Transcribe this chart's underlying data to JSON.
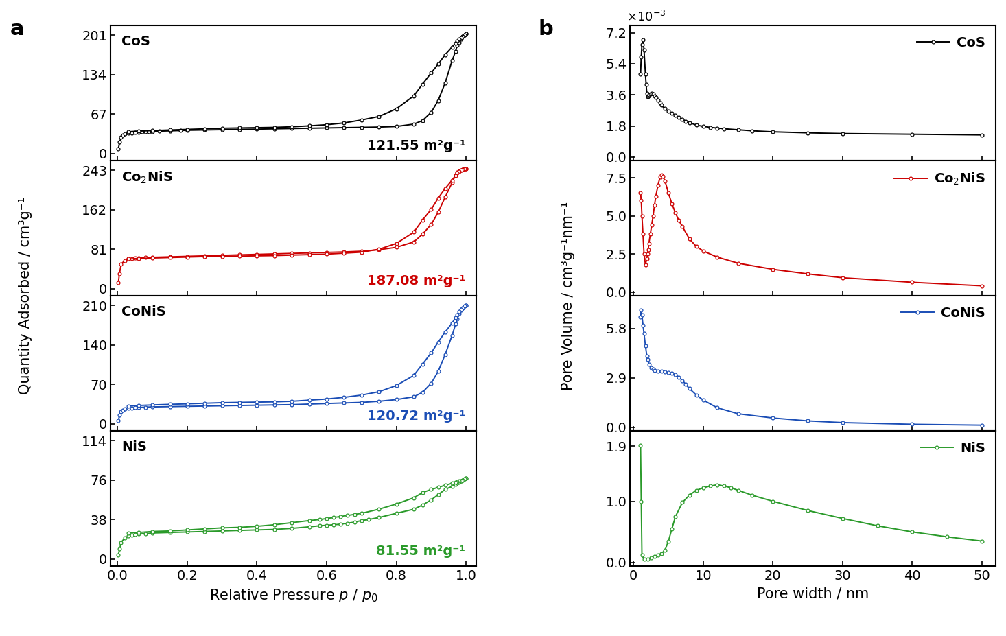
{
  "panel_a_label": "a",
  "panel_b_label": "b",
  "xlabel_a": "Relative Pressure $p$ / $p_0$",
  "ylabel_a": "Quantity Adsorbed / cm³g⁻¹",
  "xlabel_b": "Pore width / nm",
  "ylabel_b": "Pore Volume / cm³g⁻¹nm⁻¹",
  "CoS_color": "#000000",
  "Co2NiS_color": "#cc0000",
  "CoNiS_color": "#1a4db5",
  "NiS_color": "#2a9a2a",
  "CoS_label": "CoS",
  "Co2NiS_label": "Co$_2$NiS",
  "CoNiS_label": "CoNiS",
  "NiS_label": "NiS",
  "CoS_sa": "121.55 m²g⁻¹",
  "Co2NiS_sa": "187.08 m²g⁻¹",
  "CoNiS_sa": "120.72 m²g⁻¹",
  "NiS_sa": "81.55 m²g⁻¹",
  "CoS_yticks": [
    0,
    67,
    134,
    201
  ],
  "Co2NiS_yticks": [
    0,
    81,
    162,
    243
  ],
  "CoNiS_yticks": [
    0,
    70,
    140,
    210
  ],
  "NiS_yticks": [
    0,
    38,
    76,
    114
  ],
  "CoS_pv_yticks": [
    0.0,
    1.8,
    3.6,
    5.4,
    7.2
  ],
  "Co2NiS_pv_yticks": [
    0.0,
    2.5,
    5.0,
    7.5
  ],
  "CoNiS_pv_yticks": [
    0.0,
    2.9,
    5.8
  ],
  "NiS_pv_yticks": [
    0.0,
    1.0,
    1.9
  ],
  "xticks_a": [
    0.0,
    0.2,
    0.4,
    0.6,
    0.8,
    1.0
  ],
  "xticks_b": [
    0,
    10,
    20,
    30,
    40,
    50
  ],
  "background": "#ffffff",
  "CoS_adsorption_x": [
    0.002,
    0.006,
    0.01,
    0.015,
    0.02,
    0.03,
    0.04,
    0.05,
    0.06,
    0.07,
    0.08,
    0.09,
    0.1,
    0.12,
    0.15,
    0.18,
    0.2,
    0.25,
    0.3,
    0.35,
    0.4,
    0.45,
    0.5,
    0.55,
    0.6,
    0.65,
    0.7,
    0.75,
    0.8,
    0.85,
    0.875,
    0.9,
    0.92,
    0.94,
    0.96,
    0.97,
    0.975,
    0.98,
    0.985,
    0.99,
    0.995,
    1.0
  ],
  "CoS_adsorption_y": [
    8,
    20,
    28,
    31,
    33,
    34.5,
    35,
    35.5,
    36,
    36.5,
    37,
    37,
    37.5,
    38,
    38.5,
    39,
    39.5,
    40,
    40.5,
    41,
    41.5,
    42,
    42.5,
    43,
    43.5,
    44,
    44.5,
    45,
    46,
    50,
    56,
    70,
    90,
    120,
    158,
    174,
    184,
    189,
    194,
    199,
    202,
    204
  ],
  "CoS_desorption_x": [
    1.0,
    0.995,
    0.99,
    0.985,
    0.98,
    0.975,
    0.97,
    0.96,
    0.94,
    0.92,
    0.9,
    0.875,
    0.85,
    0.8,
    0.75,
    0.7,
    0.65,
    0.6,
    0.55,
    0.5,
    0.45,
    0.4,
    0.35,
    0.3,
    0.25,
    0.2,
    0.15,
    0.1,
    0.06,
    0.03
  ],
  "CoS_desorption_y": [
    204,
    202,
    199,
    197,
    194,
    191,
    188,
    181,
    168,
    152,
    137,
    118,
    98,
    76,
    63,
    57,
    52,
    49,
    47,
    45.5,
    44.5,
    44,
    43.5,
    43,
    42,
    41,
    40,
    39,
    38,
    37
  ],
  "Co2NiS_adsorption_x": [
    0.002,
    0.005,
    0.01,
    0.02,
    0.03,
    0.04,
    0.05,
    0.06,
    0.08,
    0.1,
    0.15,
    0.2,
    0.25,
    0.3,
    0.35,
    0.4,
    0.45,
    0.5,
    0.55,
    0.6,
    0.65,
    0.7,
    0.75,
    0.8,
    0.85,
    0.875,
    0.9,
    0.92,
    0.94,
    0.96,
    0.97,
    0.975,
    0.98,
    0.985,
    0.99,
    0.995,
    1.0
  ],
  "Co2NiS_adsorption_y": [
    12,
    30,
    50,
    58,
    61,
    62,
    63,
    63.5,
    64,
    64.5,
    65.5,
    66.5,
    67.5,
    68.5,
    69.5,
    70.5,
    71.5,
    72.5,
    73.5,
    74.5,
    75.5,
    77,
    80,
    85,
    96,
    112,
    132,
    157,
    188,
    218,
    234,
    239,
    242,
    244,
    245,
    246,
    247
  ],
  "Co2NiS_desorption_x": [
    1.0,
    0.995,
    0.99,
    0.985,
    0.98,
    0.975,
    0.97,
    0.96,
    0.94,
    0.92,
    0.9,
    0.875,
    0.85,
    0.8,
    0.75,
    0.7,
    0.65,
    0.6,
    0.55,
    0.5,
    0.45,
    0.4,
    0.35,
    0.3,
    0.25,
    0.2,
    0.15,
    0.1,
    0.06,
    0.03
  ],
  "Co2NiS_desorption_y": [
    247,
    246,
    245,
    243,
    241,
    238,
    233,
    223,
    206,
    186,
    163,
    141,
    116,
    93,
    81,
    75,
    73,
    71,
    70,
    69,
    68,
    67.5,
    67,
    66.5,
    66,
    65,
    64,
    63,
    62,
    61
  ],
  "CoNiS_adsorption_x": [
    0.002,
    0.006,
    0.01,
    0.015,
    0.02,
    0.03,
    0.04,
    0.05,
    0.06,
    0.08,
    0.1,
    0.15,
    0.2,
    0.25,
    0.3,
    0.35,
    0.4,
    0.45,
    0.5,
    0.55,
    0.6,
    0.65,
    0.7,
    0.75,
    0.8,
    0.85,
    0.875,
    0.9,
    0.92,
    0.94,
    0.96,
    0.97,
    0.975,
    0.98,
    0.985,
    0.99,
    0.995,
    1.0
  ],
  "CoNiS_adsorption_y": [
    6,
    16,
    21,
    24,
    26,
    27.5,
    28,
    28.5,
    29,
    29.5,
    30,
    30.5,
    31,
    31.5,
    32,
    32.5,
    33,
    33.5,
    34,
    35,
    36,
    37,
    38,
    40,
    43,
    48,
    56,
    72,
    93,
    123,
    157,
    177,
    186,
    196,
    202,
    206,
    209,
    211
  ],
  "CoNiS_desorption_x": [
    1.0,
    0.995,
    0.99,
    0.985,
    0.98,
    0.975,
    0.97,
    0.96,
    0.94,
    0.92,
    0.9,
    0.875,
    0.85,
    0.8,
    0.75,
    0.7,
    0.65,
    0.6,
    0.55,
    0.5,
    0.45,
    0.4,
    0.35,
    0.3,
    0.25,
    0.2,
    0.15,
    0.1,
    0.06,
    0.03
  ],
  "CoNiS_desorption_y": [
    211,
    209,
    206,
    203,
    199,
    194,
    189,
    179,
    163,
    145,
    126,
    106,
    86,
    68,
    57,
    51,
    47,
    44,
    42,
    40,
    39,
    38.5,
    38,
    37.5,
    36.5,
    35.5,
    34.5,
    33.5,
    32.5,
    31.5
  ],
  "NiS_adsorption_x": [
    0.002,
    0.006,
    0.01,
    0.02,
    0.03,
    0.04,
    0.05,
    0.06,
    0.08,
    0.1,
    0.15,
    0.2,
    0.25,
    0.3,
    0.35,
    0.4,
    0.45,
    0.5,
    0.55,
    0.58,
    0.6,
    0.62,
    0.64,
    0.66,
    0.68,
    0.7,
    0.72,
    0.75,
    0.8,
    0.85,
    0.875,
    0.9,
    0.92,
    0.94,
    0.96,
    0.97,
    0.975,
    0.98,
    0.985,
    0.99,
    0.995,
    1.0
  ],
  "NiS_adsorption_y": [
    4,
    10,
    16,
    20,
    22,
    23,
    23.5,
    24,
    24.5,
    25,
    25.5,
    26,
    26.5,
    27,
    27.5,
    28,
    28.5,
    29.5,
    31,
    32,
    32.5,
    33,
    33.5,
    34.5,
    35.5,
    37,
    38,
    40,
    44,
    48,
    52,
    57,
    62,
    67,
    70,
    72,
    73,
    74,
    75,
    76,
    77,
    78
  ],
  "NiS_desorption_x": [
    1.0,
    0.995,
    0.99,
    0.985,
    0.98,
    0.975,
    0.97,
    0.96,
    0.94,
    0.92,
    0.9,
    0.875,
    0.85,
    0.8,
    0.75,
    0.7,
    0.68,
    0.66,
    0.64,
    0.62,
    0.6,
    0.58,
    0.55,
    0.5,
    0.45,
    0.4,
    0.35,
    0.3,
    0.25,
    0.2,
    0.15,
    0.1,
    0.06,
    0.03
  ],
  "NiS_desorption_y": [
    78,
    77,
    76,
    75.5,
    75,
    74.5,
    74,
    73,
    71,
    69,
    67,
    64,
    59,
    53,
    48,
    44,
    43,
    42,
    41,
    40,
    39,
    38,
    37,
    35,
    33,
    31.5,
    30.5,
    30,
    29,
    28,
    27,
    26.5,
    25.5,
    25
  ],
  "CoS_pv_x": [
    1.0,
    1.1,
    1.2,
    1.35,
    1.5,
    1.7,
    1.8,
    1.9,
    2.0,
    2.1,
    2.2,
    2.4,
    2.6,
    2.8,
    3.0,
    3.2,
    3.5,
    3.8,
    4.0,
    4.5,
    5.0,
    5.5,
    6.0,
    6.5,
    7.0,
    7.5,
    8.0,
    9.0,
    10.0,
    11.0,
    12.0,
    13.0,
    15.0,
    17.0,
    20.0,
    25.0,
    30.0,
    40.0,
    50.0
  ],
  "CoS_pv_y": [
    4.8,
    5.8,
    6.5,
    6.8,
    6.2,
    4.8,
    4.2,
    3.7,
    3.5,
    3.55,
    3.6,
    3.65,
    3.7,
    3.65,
    3.55,
    3.45,
    3.3,
    3.15,
    3.0,
    2.8,
    2.65,
    2.52,
    2.4,
    2.28,
    2.18,
    2.08,
    2.0,
    1.85,
    1.78,
    1.72,
    1.68,
    1.64,
    1.58,
    1.52,
    1.46,
    1.4,
    1.36,
    1.32,
    1.28
  ],
  "Co2NiS_pv_x": [
    1.0,
    1.1,
    1.2,
    1.35,
    1.5,
    1.7,
    1.9,
    2.0,
    2.1,
    2.2,
    2.4,
    2.6,
    2.8,
    3.0,
    3.2,
    3.5,
    3.8,
    4.0,
    4.2,
    4.5,
    5.0,
    5.5,
    6.0,
    6.5,
    7.0,
    8.0,
    9.0,
    10.0,
    12.0,
    15.0,
    20.0,
    25.0,
    30.0,
    40.0,
    50.0
  ],
  "Co2NiS_pv_y": [
    6.5,
    6.0,
    5.0,
    3.8,
    2.5,
    1.8,
    2.2,
    2.5,
    2.8,
    3.2,
    3.8,
    4.4,
    5.0,
    5.7,
    6.3,
    7.0,
    7.55,
    7.7,
    7.6,
    7.3,
    6.5,
    5.8,
    5.2,
    4.7,
    4.3,
    3.5,
    3.0,
    2.7,
    2.3,
    1.9,
    1.5,
    1.2,
    0.95,
    0.65,
    0.42
  ],
  "CoNiS_pv_x": [
    1.0,
    1.1,
    1.2,
    1.35,
    1.5,
    1.7,
    1.9,
    2.0,
    2.2,
    2.5,
    2.8,
    3.0,
    3.5,
    4.0,
    4.5,
    5.0,
    5.5,
    6.0,
    6.5,
    7.0,
    7.5,
    8.0,
    9.0,
    10.0,
    12.0,
    15.0,
    20.0,
    25.0,
    30.0,
    40.0,
    50.0
  ],
  "CoNiS_pv_y": [
    6.5,
    6.9,
    6.6,
    6.0,
    5.5,
    4.8,
    4.2,
    4.0,
    3.7,
    3.5,
    3.4,
    3.35,
    3.3,
    3.28,
    3.25,
    3.22,
    3.18,
    3.1,
    2.95,
    2.75,
    2.52,
    2.28,
    1.9,
    1.6,
    1.15,
    0.8,
    0.55,
    0.38,
    0.28,
    0.18,
    0.13
  ],
  "NiS_pv_x": [
    1.0,
    1.1,
    1.2,
    1.5,
    2.0,
    2.5,
    3.0,
    3.5,
    4.0,
    4.5,
    5.0,
    5.5,
    6.0,
    7.0,
    8.0,
    9.0,
    10.0,
    11.0,
    12.0,
    13.0,
    14.0,
    15.0,
    17.0,
    20.0,
    25.0,
    30.0,
    35.0,
    40.0,
    45.0,
    50.0
  ],
  "NiS_pv_y": [
    1.92,
    1.0,
    0.12,
    0.05,
    0.05,
    0.08,
    0.1,
    0.12,
    0.15,
    0.2,
    0.35,
    0.55,
    0.75,
    0.98,
    1.1,
    1.18,
    1.22,
    1.25,
    1.27,
    1.25,
    1.22,
    1.18,
    1.1,
    1.0,
    0.85,
    0.72,
    0.6,
    0.5,
    0.42,
    0.35
  ],
  "pv_scale": 0.001,
  "figwidth": 14.66,
  "figheight": 9.27,
  "dpi": 100
}
